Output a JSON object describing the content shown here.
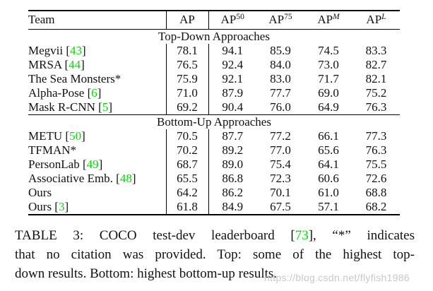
{
  "table": {
    "header": {
      "team": "Team",
      "metric_cols": [
        {
          "base": "AP",
          "sup": "",
          "bold": true
        },
        {
          "base": "AP",
          "sup": "50",
          "italic_sup": false
        },
        {
          "base": "AP",
          "sup": "75",
          "italic_sup": false
        },
        {
          "base": "AP",
          "sup": "M",
          "italic_sup": true
        },
        {
          "base": "AP",
          "sup": "L",
          "italic_sup": true
        }
      ]
    },
    "sections": [
      {
        "title": "Top-Down Approaches",
        "rows": [
          {
            "team": "Megvii",
            "cite": "43",
            "values": [
              "78.1",
              "94.1",
              "85.9",
              "74.5",
              "83.3"
            ]
          },
          {
            "team": "MRSA",
            "cite": "44",
            "values": [
              "76.5",
              "92.4",
              "84.0",
              "73.0",
              "82.7"
            ]
          },
          {
            "team": "The Sea Monsters*",
            "cite": null,
            "values": [
              "75.9",
              "92.1",
              "83.0",
              "71.7",
              "82.1"
            ]
          },
          {
            "team": "Alpha-Pose",
            "cite": "6",
            "values": [
              "71.0",
              "87.9",
              "77.7",
              "69.0",
              "75.2"
            ]
          },
          {
            "team": "Mask R-CNN",
            "cite": "5",
            "values": [
              "69.2",
              "90.4",
              "76.0",
              "64.9",
              "76.3"
            ]
          }
        ]
      },
      {
        "title": "Bottom-Up Approaches",
        "rows": [
          {
            "team": "METU",
            "cite": "50",
            "values": [
              "70.5",
              "87.7",
              "77.2",
              "66.1",
              "77.3"
            ]
          },
          {
            "team": "TFMAN*",
            "cite": null,
            "values": [
              "70.2",
              "89.2",
              "77.0",
              "65.6",
              "76.3"
            ]
          },
          {
            "team": "PersonLab",
            "cite": "49",
            "values": [
              "68.7",
              "89.0",
              "75.4",
              "64.1",
              "75.5"
            ]
          },
          {
            "team": "Associative Emb.",
            "cite": "48",
            "values": [
              "65.5",
              "86.8",
              "72.3",
              "60.6",
              "72.6"
            ]
          },
          {
            "team": "Ours",
            "cite": null,
            "values": [
              "64.2",
              "86.2",
              "70.1",
              "61.0",
              "68.8"
            ]
          },
          {
            "team": "Ours",
            "cite": "3",
            "values": [
              "61.8",
              "84.9",
              "67.5",
              "57.1",
              "68.2"
            ]
          }
        ]
      }
    ]
  },
  "caption": {
    "line1_pre": "TABLE 3: COCO test-dev leaderboard [",
    "line1_cite": "73",
    "line1_post": "], “*” indicates",
    "line2": "that no citation was provided. Top: some of the highest top-",
    "line3": "down results. Bottom: highest bottom-up results."
  },
  "watermark": "https://blog.csdn.net/flyfish1986",
  "colors": {
    "citation_green": "#00dd00",
    "watermark_gray": "#c8c8c8"
  }
}
